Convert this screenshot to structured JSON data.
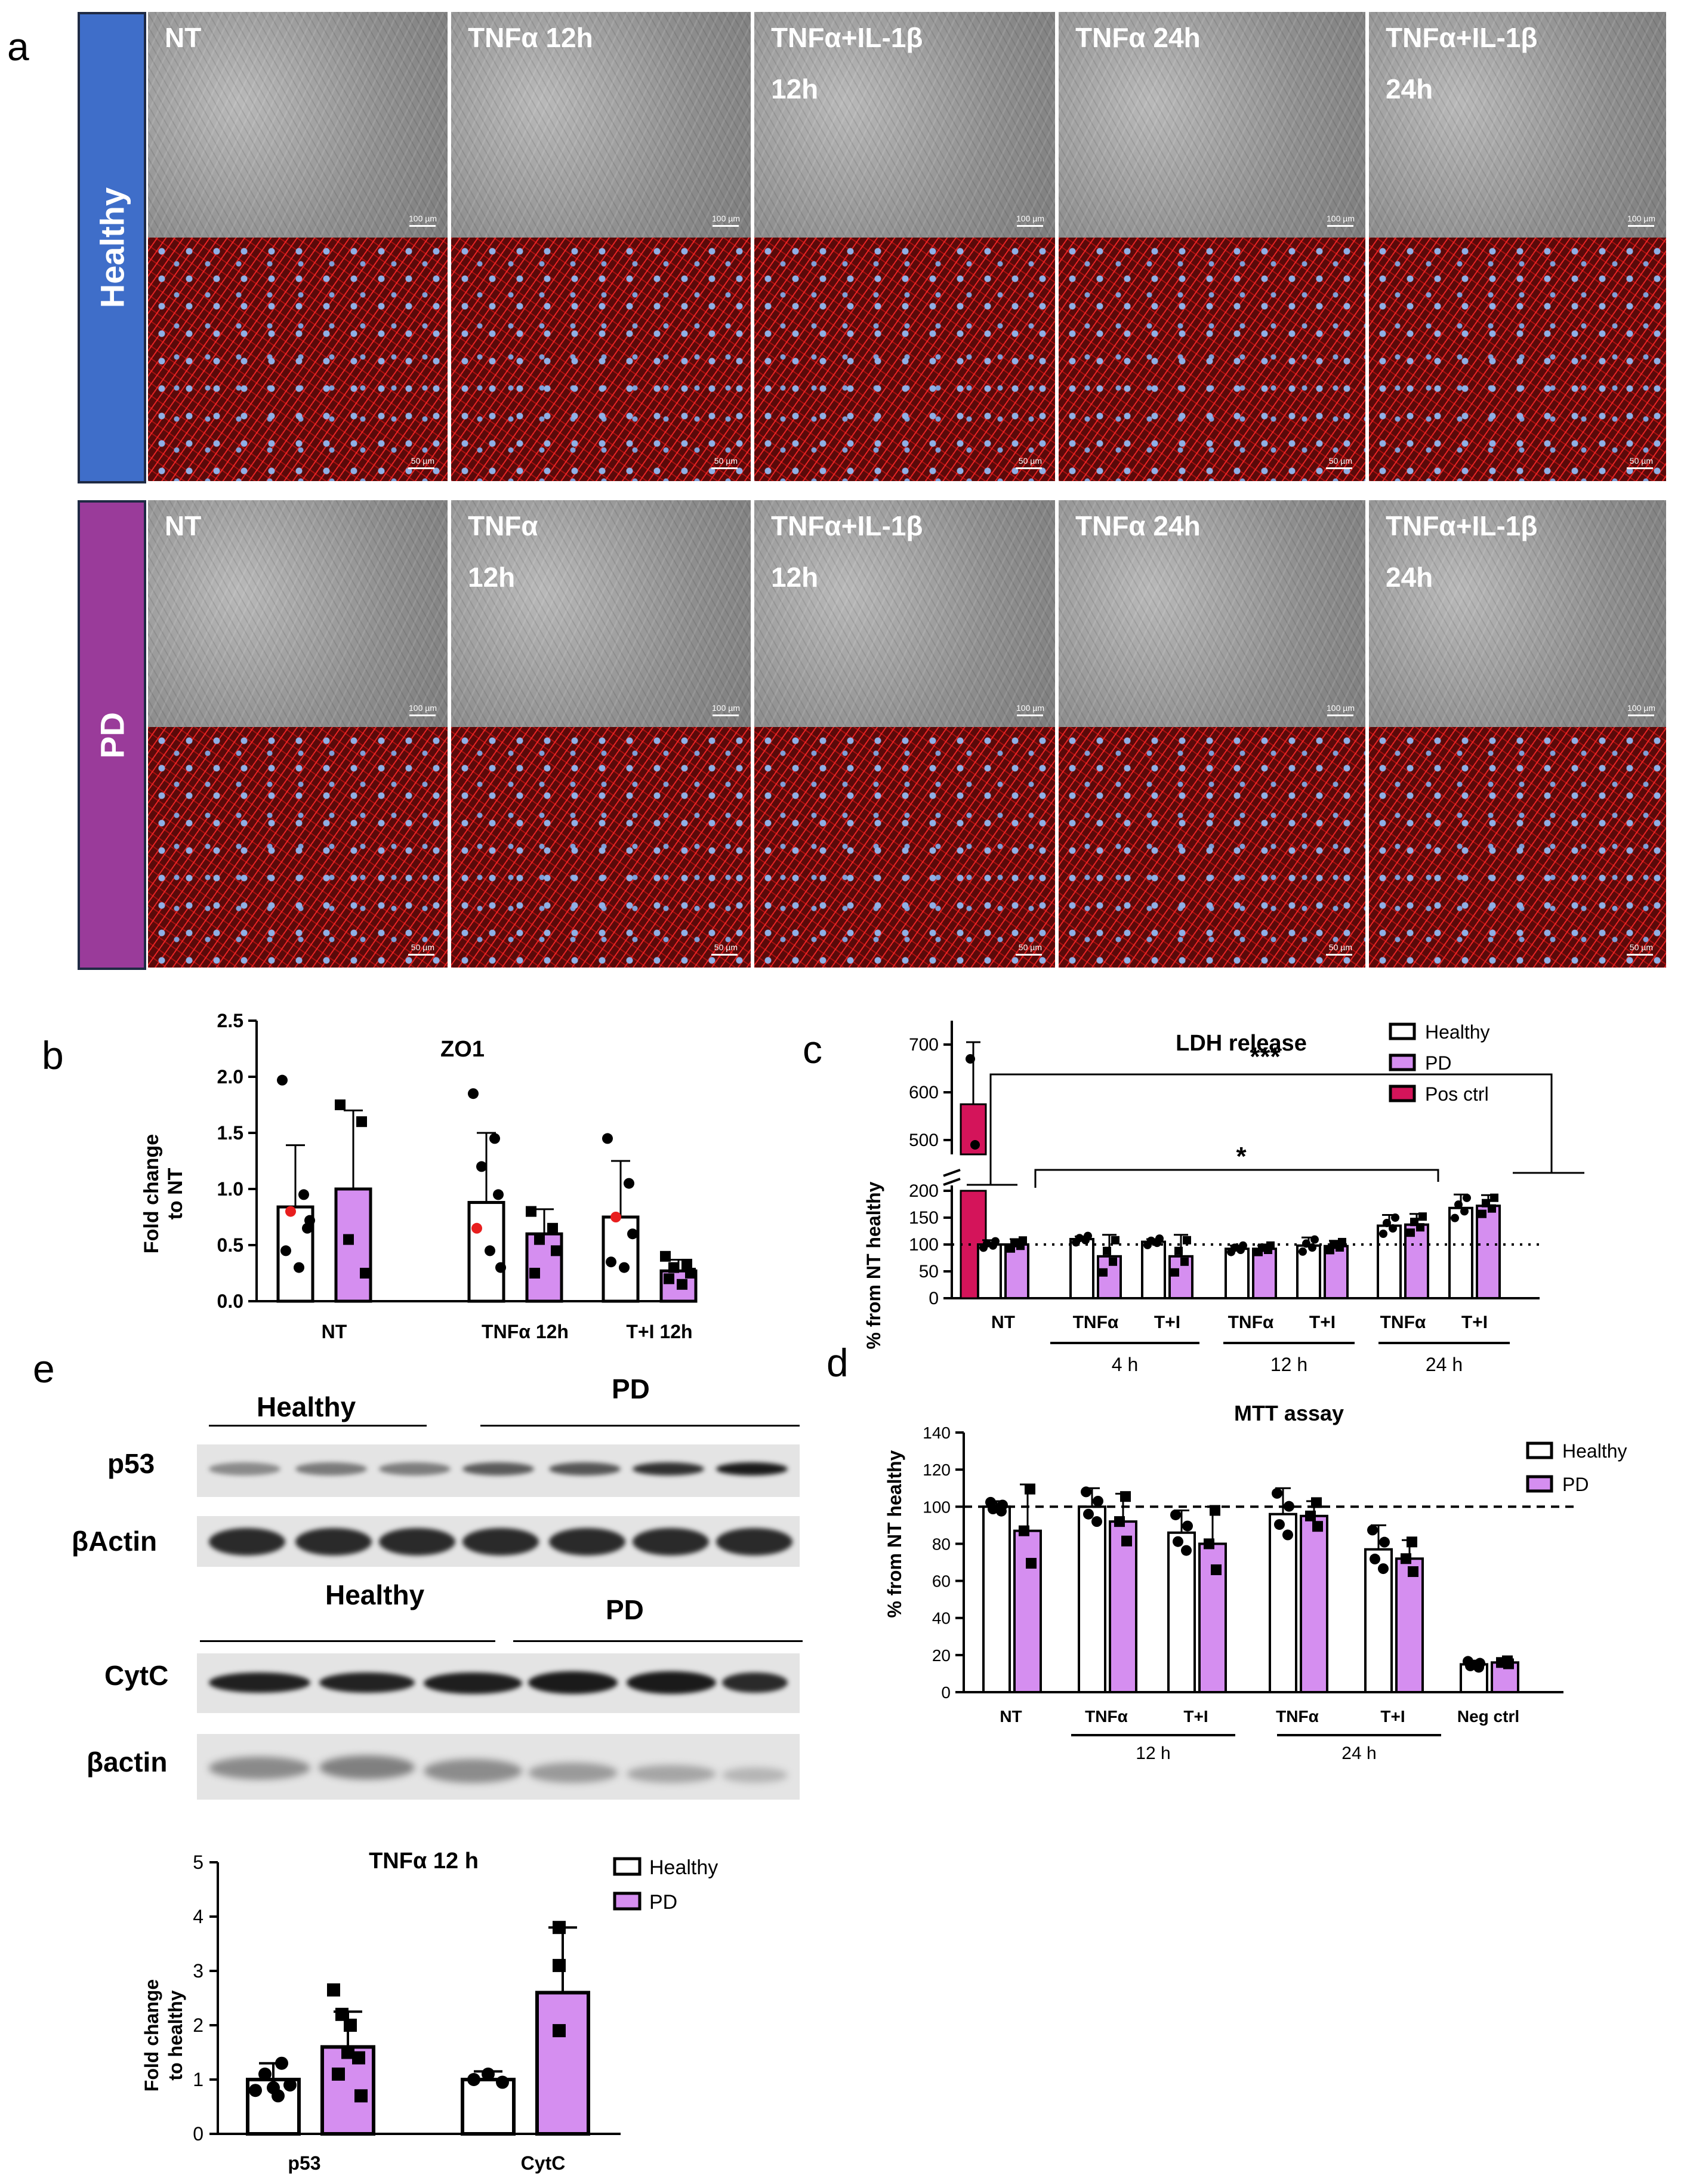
{
  "panel_letters": [
    "a",
    "b",
    "c",
    "d",
    "e"
  ],
  "panel_a": {
    "rows": [
      {
        "group": "Healthy",
        "color": "#3f6ec9",
        "labels": [
          "NT",
          "TNFα 12h",
          "TNFα+IL-1β\n12h",
          "TNFα 24h",
          "TNFα+IL-1β\n24h"
        ]
      },
      {
        "group": "PD",
        "color": "#9a3b9a",
        "labels": [
          "NT",
          "TNFα\n12h",
          "TNFα+IL-1β\n12h",
          "TNFα 24h",
          "TNFα+IL-1β\n24h"
        ]
      }
    ],
    "scale_bf": "100 µm",
    "scale_fl": "50 µm"
  },
  "chart_data": [
    {
      "id": "b",
      "type": "bar",
      "title": "ZO1",
      "ylabel": "Fold change\nto NT",
      "ylim": [
        0,
        2.5
      ],
      "yticks": [
        "0.0",
        "0.5",
        "1.0",
        "1.5",
        "2.0",
        "2.5"
      ],
      "categories": [
        "NT",
        "TNFα 12h",
        "T+I 12h"
      ],
      "series": [
        {
          "name": "Healthy",
          "values": [
            0.84,
            0.88,
            0.75
          ],
          "errors": [
            0.55,
            0.62,
            0.5
          ],
          "points": [
            [
              1.97,
              0.95,
              0.8,
              0.65,
              0.45,
              0.3,
              0.72
            ],
            [
              1.85,
              1.45,
              1.2,
              0.95,
              0.65,
              0.45,
              0.3
            ],
            [
              1.45,
              1.05,
              0.75,
              0.6,
              0.35,
              0.3
            ]
          ]
        },
        {
          "name": "PD",
          "values": [
            1.0,
            0.6,
            0.27
          ],
          "errors": [
            0.7,
            0.22,
            0.1
          ],
          "points": [
            [
              1.75,
              1.6,
              0.55,
              0.25
            ],
            [
              0.8,
              0.65,
              0.55,
              0.45,
              0.25
            ],
            [
              0.4,
              0.33,
              0.3,
              0.25,
              0.2,
              0.15
            ]
          ]
        }
      ]
    },
    {
      "id": "c",
      "type": "bar",
      "title": "LDH release",
      "ylabel": "% from NT healthy",
      "yticks_low": [
        "0",
        "50",
        "100",
        "150",
        "200"
      ],
      "yticks_high": [
        "500",
        "600",
        "700"
      ],
      "categories": [
        "NT",
        "TNFα",
        "T+I",
        "TNFα",
        "T+I",
        "TNFα",
        "T+I"
      ],
      "group_labels": [
        "4 h",
        "12 h",
        "24 h"
      ],
      "legend": [
        "Healthy",
        "PD",
        "Pos ctrl"
      ],
      "significance": [
        "***",
        "*"
      ],
      "pos_ctrl": {
        "value": 575,
        "error": 130
      },
      "series": [
        {
          "name": "Healthy",
          "values": [
            100,
            110,
            105,
            92,
            98,
            135,
            168
          ],
          "errors": [
            8,
            5,
            5,
            6,
            15,
            20,
            25
          ]
        },
        {
          "name": "PD",
          "values": [
            100,
            78,
            78,
            92,
            97,
            137,
            172
          ],
          "errors": [
            10,
            40,
            40,
            6,
            10,
            20,
            20
          ]
        }
      ],
      "reference_line": 100
    },
    {
      "id": "d",
      "type": "bar",
      "title": "MTT assay",
      "ylabel": "% from NT healthy",
      "ylim": [
        0,
        140
      ],
      "yticks": [
        "0",
        "20",
        "40",
        "60",
        "80",
        "100",
        "120",
        "140"
      ],
      "categories": [
        "NT",
        "TNFα",
        "T+I",
        "TNFα",
        "T+I",
        "Neg ctrl"
      ],
      "group_labels": [
        "12 h",
        "24 h"
      ],
      "legend": [
        "Healthy",
        "PD"
      ],
      "reference_line": 100,
      "series": [
        {
          "name": "Healthy",
          "values": [
            100,
            100,
            86,
            96,
            77,
            15
          ],
          "errors": [
            3,
            10,
            12,
            14,
            13,
            2
          ]
        },
        {
          "name": "PD",
          "values": [
            87,
            92,
            80,
            95,
            72,
            16
          ],
          "errors": [
            25,
            15,
            20,
            8,
            10,
            1
          ]
        }
      ]
    },
    {
      "id": "e",
      "type": "bar",
      "title": "TNFα 12 h",
      "ylabel": "Fold change\nto healthy",
      "ylim": [
        0,
        5
      ],
      "yticks": [
        "0",
        "1",
        "2",
        "3",
        "4",
        "5"
      ],
      "categories": [
        "p53",
        "CytC"
      ],
      "legend": [
        "Healthy",
        "PD"
      ],
      "series": [
        {
          "name": "Healthy",
          "values": [
            1.0,
            1.0
          ],
          "errors": [
            0.3,
            0.15
          ]
        },
        {
          "name": "PD",
          "values": [
            1.6,
            2.6
          ],
          "errors": [
            0.65,
            1.2
          ]
        }
      ]
    }
  ],
  "blots": {
    "group_top": [
      "Healthy",
      "PD"
    ],
    "group_bottom": [
      "Healthy",
      "PD"
    ],
    "rows": [
      "p53",
      "βActin",
      "CytC",
      "βactin"
    ]
  }
}
